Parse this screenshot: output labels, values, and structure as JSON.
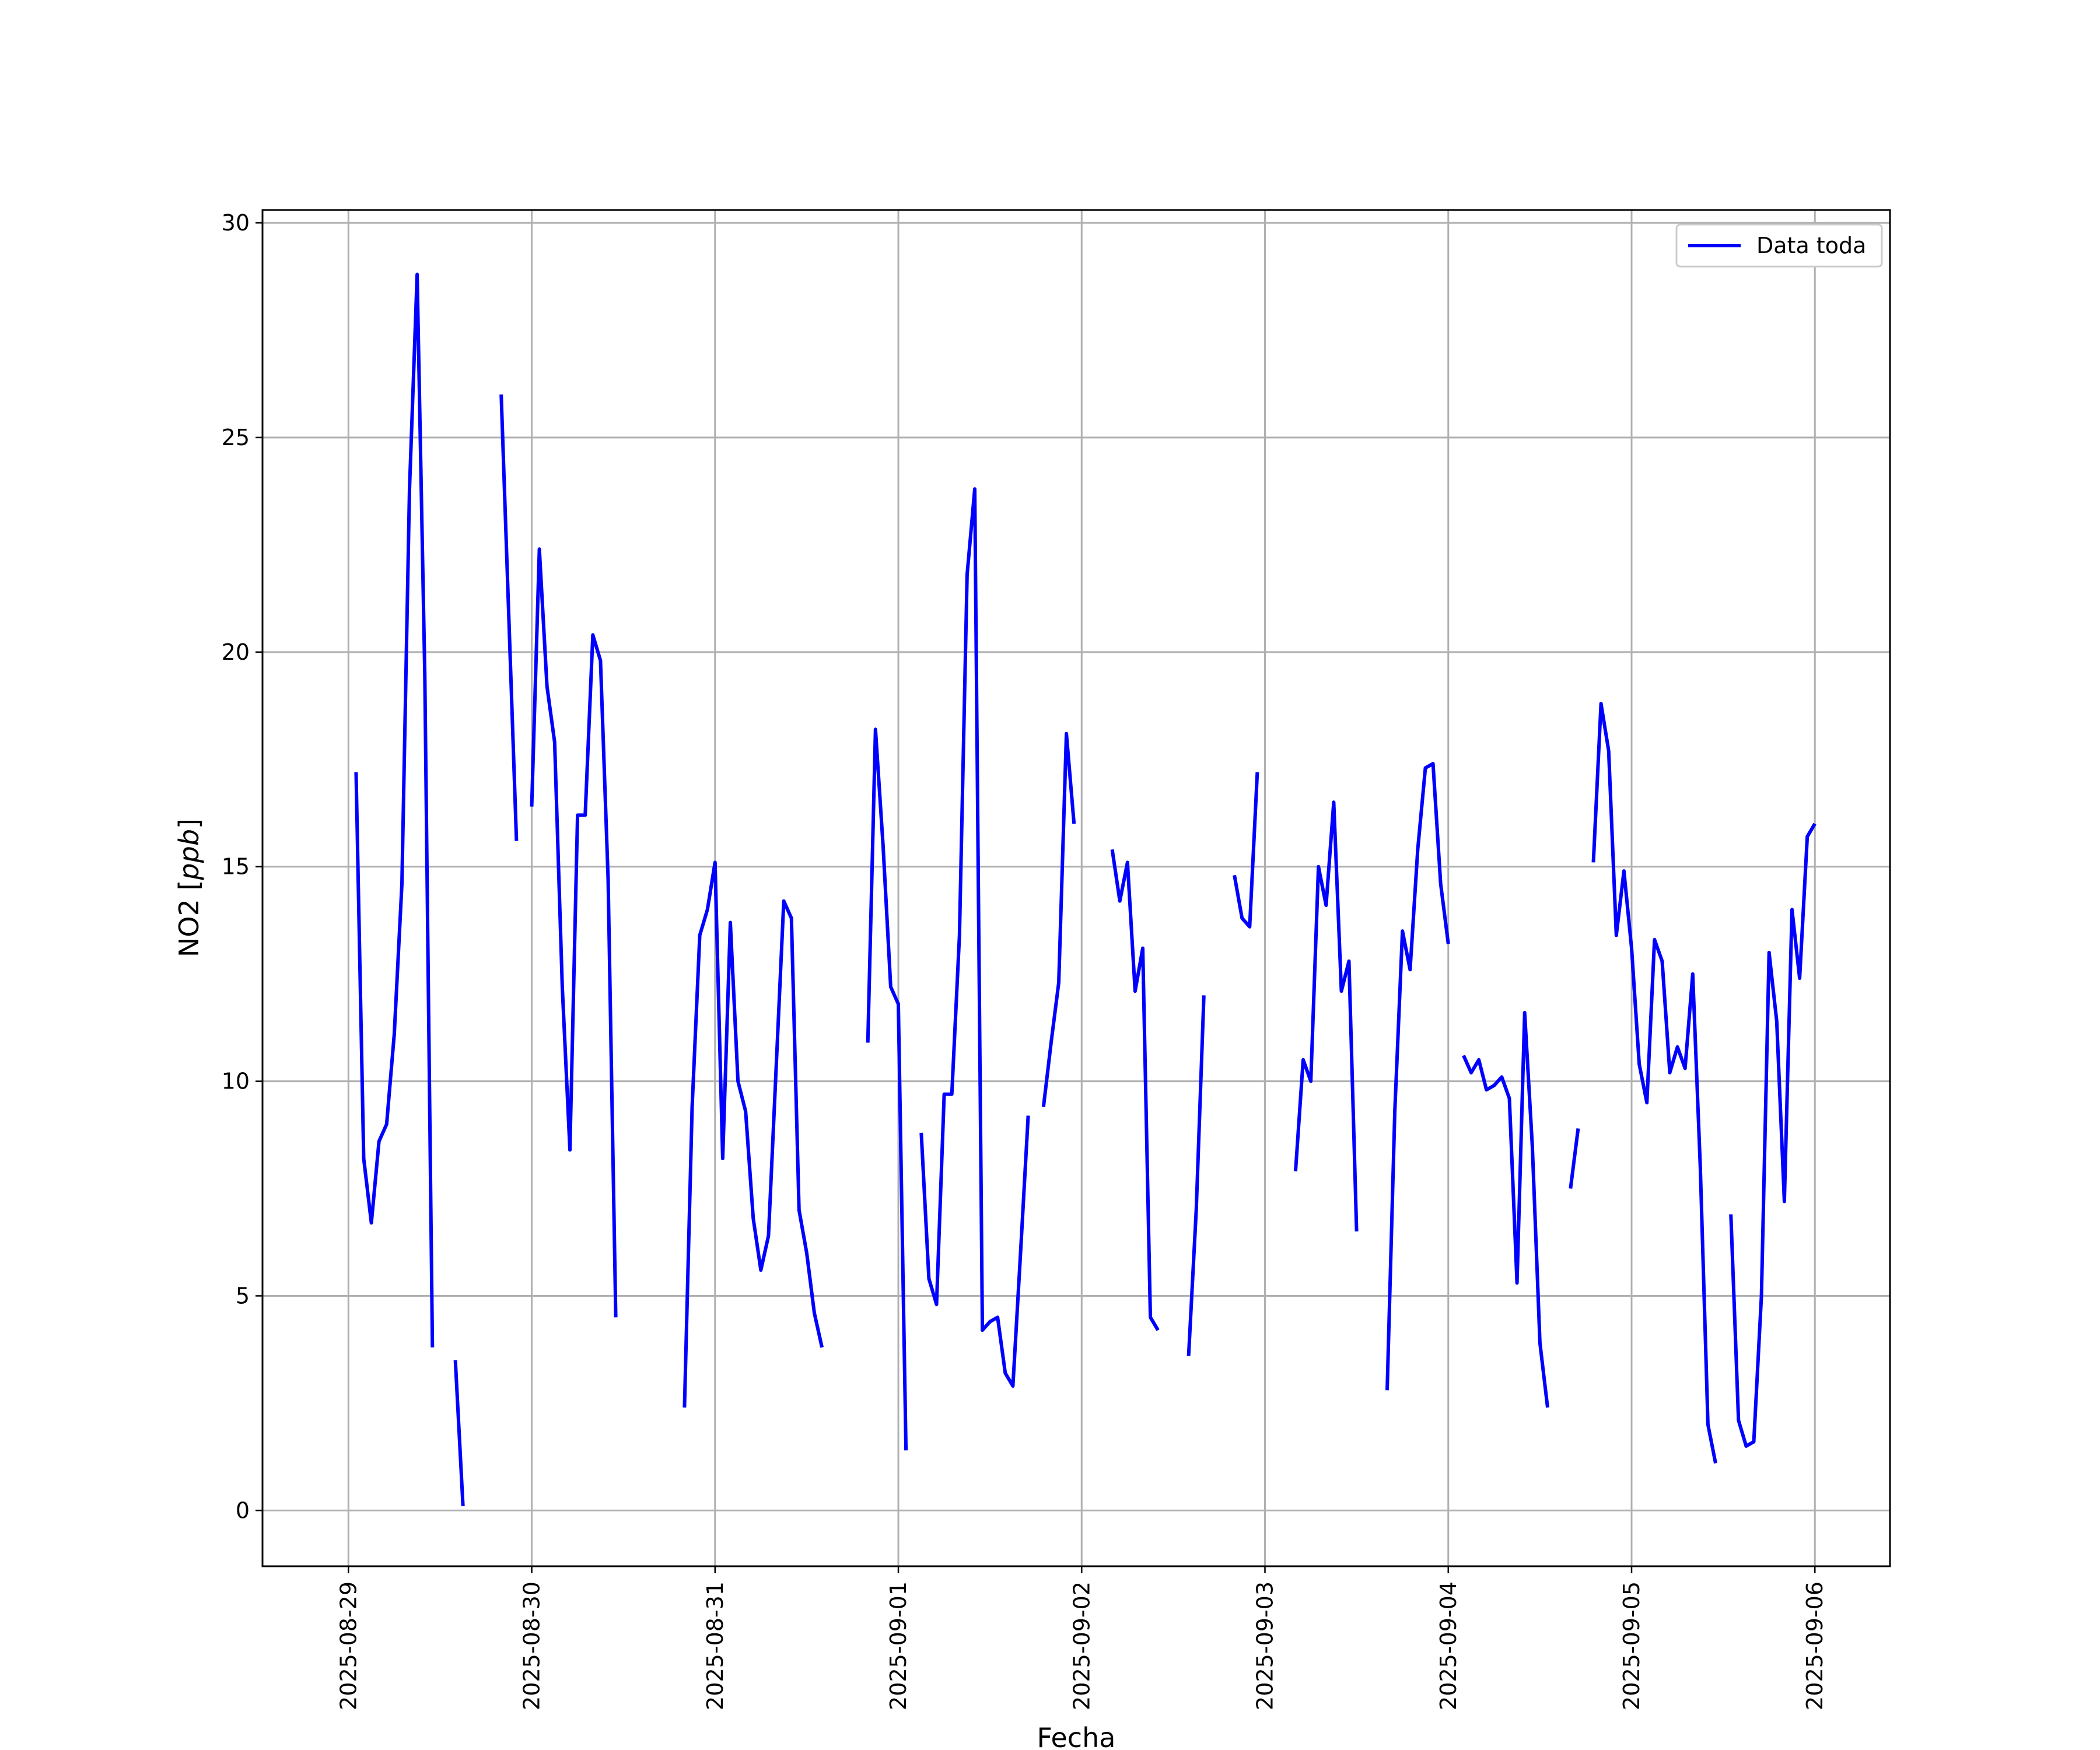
{
  "chart_data": {
    "type": "line",
    "title": "",
    "xlabel": "Fecha",
    "ylabel": "NO2 [ppb]",
    "x_axis_type": "date",
    "xlim": [
      "2025-08-28T12:45",
      "2025-09-06T09:50"
    ],
    "ylim": [
      -1.3,
      30.3
    ],
    "x_ticks": [
      "2025-08-29",
      "2025-08-30",
      "2025-08-31",
      "2025-09-01",
      "2025-09-02",
      "2025-09-03",
      "2025-09-04",
      "2025-09-05",
      "2025-09-06"
    ],
    "y_ticks": [
      0,
      5,
      10,
      15,
      20,
      25,
      30
    ],
    "grid": true,
    "legend_position": "top-right",
    "series": [
      {
        "name": "Data toda",
        "color": "#0000ff",
        "segments": [
          [
            [
              "2025-08-29T01:00",
              17.2
            ],
            [
              "2025-08-29T02:00",
              8.2
            ],
            [
              "2025-08-29T03:00",
              6.7
            ],
            [
              "2025-08-29T04:00",
              8.6
            ],
            [
              "2025-08-29T05:00",
              9.0
            ],
            [
              "2025-08-29T06:00",
              11.1
            ],
            [
              "2025-08-29T07:00",
              14.6
            ],
            [
              "2025-08-29T08:00",
              23.8
            ],
            [
              "2025-08-29T09:00",
              28.8
            ],
            [
              "2025-08-29T10:00",
              19.5
            ],
            [
              "2025-08-29T11:00",
              3.8
            ]
          ],
          [
            [
              "2025-08-29T14:00",
              3.5
            ],
            [
              "2025-08-29T15:00",
              0.1
            ]
          ],
          [
            [
              "2025-08-29T20:00",
              26.0
            ],
            [
              "2025-08-29T21:00",
              20.8
            ],
            [
              "2025-08-29T22:00",
              15.6
            ]
          ],
          [
            [
              "2025-08-30T00:00",
              16.4
            ],
            [
              "2025-08-30T01:00",
              22.4
            ],
            [
              "2025-08-30T02:00",
              19.2
            ],
            [
              "2025-08-30T03:00",
              17.9
            ],
            [
              "2025-08-30T04:00",
              12.2
            ],
            [
              "2025-08-30T05:00",
              8.4
            ],
            [
              "2025-08-30T06:00",
              16.2
            ],
            [
              "2025-08-30T07:00",
              16.2
            ],
            [
              "2025-08-30T08:00",
              20.4
            ],
            [
              "2025-08-30T09:00",
              19.8
            ],
            [
              "2025-08-30T10:00",
              14.7
            ],
            [
              "2025-08-30T11:00",
              4.5
            ]
          ],
          [
            [
              "2025-08-30T20:00",
              2.4
            ],
            [
              "2025-08-30T21:00",
              9.4
            ],
            [
              "2025-08-30T22:00",
              13.4
            ],
            [
              "2025-08-30T23:00",
              14.0
            ],
            [
              "2025-08-31T00:00",
              15.1
            ],
            [
              "2025-08-31T01:00",
              8.2
            ],
            [
              "2025-08-31T02:00",
              13.7
            ],
            [
              "2025-08-31T03:00",
              10.0
            ],
            [
              "2025-08-31T04:00",
              9.3
            ],
            [
              "2025-08-31T05:00",
              6.8
            ],
            [
              "2025-08-31T06:00",
              5.6
            ],
            [
              "2025-08-31T07:00",
              6.4
            ],
            [
              "2025-08-31T08:00",
              10.3
            ],
            [
              "2025-08-31T09:00",
              14.2
            ],
            [
              "2025-08-31T10:00",
              13.8
            ],
            [
              "2025-08-31T11:00",
              7.0
            ],
            [
              "2025-08-31T12:00",
              6.0
            ],
            [
              "2025-08-31T13:00",
              4.6
            ],
            [
              "2025-08-31T14:00",
              3.8
            ]
          ],
          [
            [
              "2025-08-31T20:00",
              10.9
            ],
            [
              "2025-08-31T21:00",
              18.2
            ],
            [
              "2025-08-31T22:00",
              15.5
            ],
            [
              "2025-08-31T23:00",
              12.2
            ],
            [
              "2025-09-01T00:00",
              11.8
            ],
            [
              "2025-09-01T01:00",
              1.4
            ]
          ],
          [
            [
              "2025-09-01T03:00",
              8.8
            ],
            [
              "2025-09-01T04:00",
              5.4
            ],
            [
              "2025-09-01T05:00",
              4.8
            ],
            [
              "2025-09-01T06:00",
              9.7
            ],
            [
              "2025-09-01T07:00",
              9.7
            ],
            [
              "2025-09-01T08:00",
              13.4
            ],
            [
              "2025-09-01T09:00",
              21.8
            ],
            [
              "2025-09-01T10:00",
              23.8
            ],
            [
              "2025-09-01T11:00",
              4.2
            ],
            [
              "2025-09-01T12:00",
              4.4
            ],
            [
              "2025-09-01T13:00",
              4.5
            ],
            [
              "2025-09-01T14:00",
              3.2
            ],
            [
              "2025-09-01T15:00",
              2.9
            ],
            [
              "2025-09-01T16:00",
              6.0
            ],
            [
              "2025-09-01T17:00",
              9.2
            ]
          ],
          [
            [
              "2025-09-01T19:00",
              9.4
            ],
            [
              "2025-09-01T20:00",
              10.9
            ],
            [
              "2025-09-01T21:00",
              12.3
            ],
            [
              "2025-09-01T22:00",
              18.1
            ],
            [
              "2025-09-01T23:00",
              16.0
            ]
          ],
          [
            [
              "2025-09-02T04:00",
              15.4
            ],
            [
              "2025-09-02T05:00",
              14.2
            ],
            [
              "2025-09-02T06:00",
              15.1
            ],
            [
              "2025-09-02T07:00",
              12.1
            ],
            [
              "2025-09-02T08:00",
              13.1
            ],
            [
              "2025-09-02T09:00",
              4.5
            ],
            [
              "2025-09-02T10:00",
              4.2
            ]
          ],
          [
            [
              "2025-09-02T14:00",
              3.6
            ],
            [
              "2025-09-02T15:00",
              7.0
            ],
            [
              "2025-09-02T16:00",
              12.0
            ]
          ],
          [
            [
              "2025-09-02T20:00",
              14.8
            ],
            [
              "2025-09-02T21:00",
              13.8
            ],
            [
              "2025-09-02T22:00",
              13.6
            ],
            [
              "2025-09-02T23:00",
              17.2
            ]
          ],
          [
            [
              "2025-09-03T04:00",
              7.9
            ],
            [
              "2025-09-03T05:00",
              10.5
            ],
            [
              "2025-09-03T06:00",
              10.0
            ],
            [
              "2025-09-03T07:00",
              15.0
            ],
            [
              "2025-09-03T08:00",
              14.1
            ],
            [
              "2025-09-03T09:00",
              16.5
            ],
            [
              "2025-09-03T10:00",
              12.1
            ],
            [
              "2025-09-03T11:00",
              12.8
            ],
            [
              "2025-09-03T12:00",
              6.5
            ]
          ],
          [
            [
              "2025-09-03T16:00",
              2.8
            ],
            [
              "2025-09-03T17:00",
              9.3
            ],
            [
              "2025-09-03T18:00",
              13.5
            ],
            [
              "2025-09-03T19:00",
              12.6
            ],
            [
              "2025-09-03T20:00",
              15.4
            ],
            [
              "2025-09-03T21:00",
              17.3
            ],
            [
              "2025-09-03T22:00",
              17.4
            ],
            [
              "2025-09-03T23:00",
              14.6
            ],
            [
              "2025-09-04T00:00",
              13.2
            ]
          ],
          [
            [
              "2025-09-04T02:00",
              10.6
            ],
            [
              "2025-09-04T03:00",
              10.2
            ],
            [
              "2025-09-04T04:00",
              10.5
            ],
            [
              "2025-09-04T05:00",
              9.8
            ],
            [
              "2025-09-04T06:00",
              9.9
            ],
            [
              "2025-09-04T07:00",
              10.1
            ],
            [
              "2025-09-04T08:00",
              9.6
            ],
            [
              "2025-09-04T09:00",
              5.3
            ],
            [
              "2025-09-04T10:00",
              11.6
            ],
            [
              "2025-09-04T11:00",
              8.5
            ],
            [
              "2025-09-04T12:00",
              3.9
            ],
            [
              "2025-09-04T13:00",
              2.4
            ]
          ],
          [
            [
              "2025-09-04T16:00",
              7.5
            ],
            [
              "2025-09-04T17:00",
              8.9
            ]
          ],
          [
            [
              "2025-09-04T19:00",
              15.1
            ],
            [
              "2025-09-04T20:00",
              18.8
            ],
            [
              "2025-09-04T21:00",
              17.7
            ],
            [
              "2025-09-04T22:00",
              13.4
            ],
            [
              "2025-09-04T23:00",
              14.9
            ],
            [
              "2025-09-05T00:00",
              13.1
            ],
            [
              "2025-09-05T01:00",
              10.4
            ],
            [
              "2025-09-05T02:00",
              9.5
            ],
            [
              "2025-09-05T03:00",
              13.3
            ],
            [
              "2025-09-05T04:00",
              12.8
            ],
            [
              "2025-09-05T05:00",
              10.2
            ],
            [
              "2025-09-05T06:00",
              10.8
            ],
            [
              "2025-09-05T07:00",
              10.3
            ],
            [
              "2025-09-05T08:00",
              12.5
            ],
            [
              "2025-09-05T09:00",
              8.0
            ],
            [
              "2025-09-05T10:00",
              2.0
            ],
            [
              "2025-09-05T11:00",
              1.1
            ]
          ],
          [
            [
              "2025-09-05T13:00",
              6.9
            ],
            [
              "2025-09-05T14:00",
              2.1
            ],
            [
              "2025-09-05T15:00",
              1.5
            ],
            [
              "2025-09-05T16:00",
              1.6
            ],
            [
              "2025-09-05T17:00",
              5.0
            ],
            [
              "2025-09-05T18:00",
              13.0
            ],
            [
              "2025-09-05T19:00",
              11.4
            ],
            [
              "2025-09-05T20:00",
              7.2
            ],
            [
              "2025-09-05T21:00",
              14.0
            ],
            [
              "2025-09-05T22:00",
              12.4
            ],
            [
              "2025-09-05T23:00",
              15.7
            ],
            [
              "2025-09-06T00:00",
              16.0
            ]
          ]
        ]
      }
    ]
  }
}
